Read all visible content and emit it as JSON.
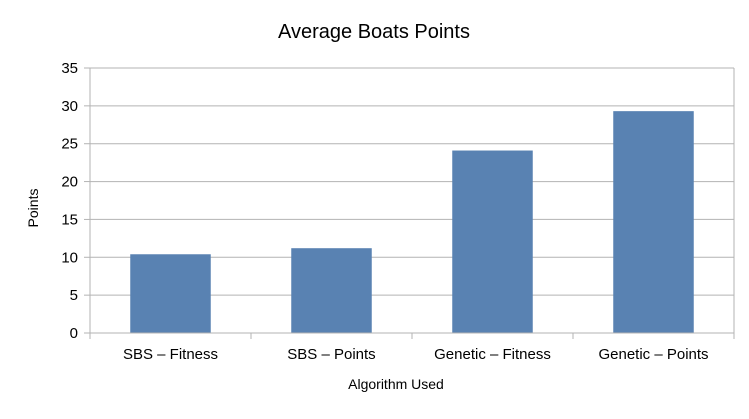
{
  "chart_data": {
    "type": "bar",
    "title": "Average Boats Points",
    "xlabel": "Algorithm Used",
    "ylabel": "Points",
    "categories": [
      "SBS – Fitness",
      "SBS – Points",
      "Genetic – Fitness",
      "Genetic – Points"
    ],
    "values": [
      10.4,
      11.2,
      24.1,
      29.3
    ],
    "ylim": [
      0,
      35
    ],
    "yticks": [
      "0",
      "5",
      "10",
      "15",
      "20",
      "25",
      "30",
      "35"
    ],
    "grid": true,
    "legend": "none",
    "bar_color": "#5982b2",
    "grid_color": "#b3b3b3",
    "axis_color": "#b3b3b3"
  }
}
